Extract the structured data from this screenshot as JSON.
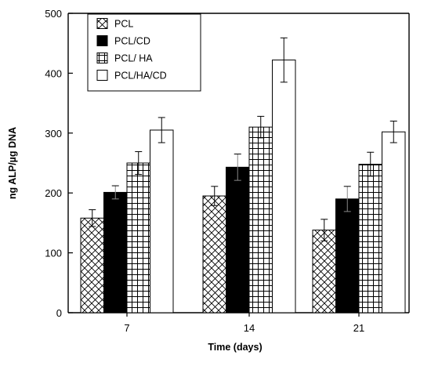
{
  "chart_data": {
    "type": "bar",
    "title": "",
    "xlabel": "Time (days)",
    "ylabel": "ng ALP/µg DNA",
    "categories": [
      "7",
      "14",
      "21"
    ],
    "ylim": [
      0,
      500
    ],
    "yticks": [
      "0",
      "100",
      "200",
      "300",
      "400",
      "500"
    ],
    "grid": false,
    "legend_position": "top-left",
    "series": [
      {
        "name": "PCL",
        "pattern": "crosshatch-diagonal",
        "values": [
          158,
          195,
          138
        ],
        "errors": [
          14,
          16,
          18
        ]
      },
      {
        "name": "PCL/CD",
        "pattern": "solid-black",
        "values": [
          201,
          243,
          190
        ],
        "errors": [
          11,
          22,
          21
        ]
      },
      {
        "name": "PCL/ HA",
        "pattern": "grid-square",
        "values": [
          250,
          310,
          248
        ],
        "errors": [
          19,
          18,
          20
        ]
      },
      {
        "name": "PCL/HA/CD",
        "pattern": "solid-white",
        "values": [
          305,
          422,
          302
        ],
        "errors": [
          21,
          37,
          18
        ]
      }
    ]
  }
}
